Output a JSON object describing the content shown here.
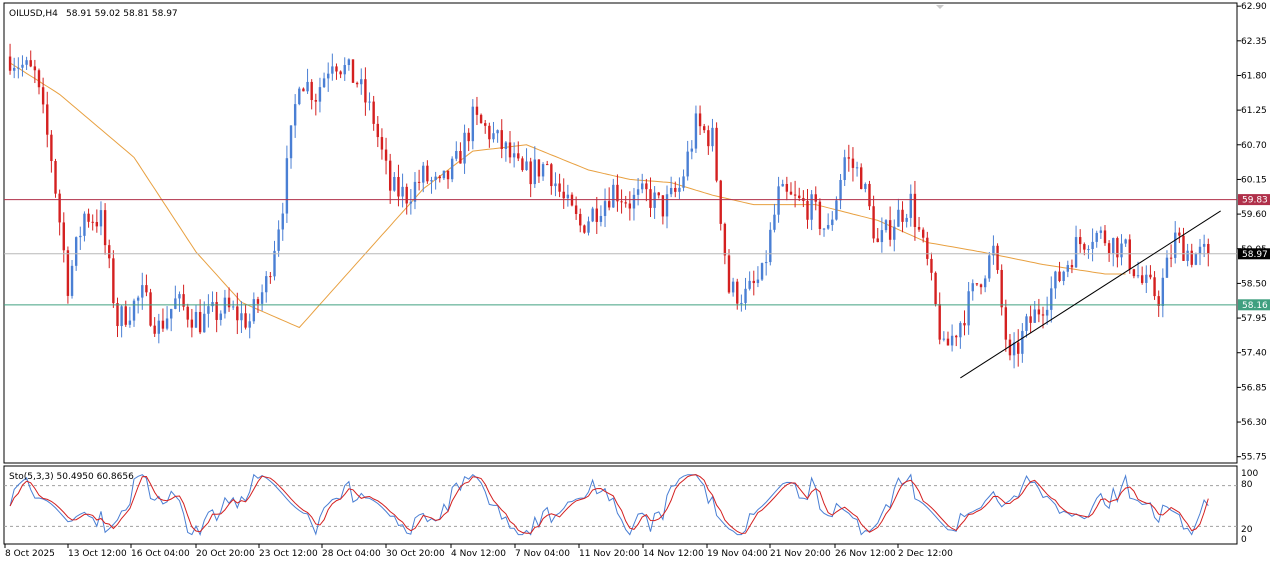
{
  "header": {
    "symbol": "OILUSD,H4",
    "ohlc": "58.91 59.02 58.81 58.97"
  },
  "oscillator": {
    "label": "Sto(5,3,3) 50.4950 60.8656",
    "levels": [
      "100",
      "80",
      "20",
      "0"
    ]
  },
  "price_labels": {
    "resistance": "59.83",
    "current": "58.97",
    "support": "58.16"
  },
  "colors": {
    "bull": "#4a7fd4",
    "bear": "#d42020",
    "ma": "#e8a040",
    "resistance": "#b0304a",
    "support": "#40a080",
    "current": "#000000",
    "stoch_main": "#4a7fd4",
    "stoch_signal": "#d42020"
  },
  "chart_data": {
    "type": "candlestick",
    "symbol": "OILUSD",
    "timeframe": "H4",
    "y_ticks": [
      "62.90",
      "62.35",
      "61.80",
      "61.25",
      "60.70",
      "60.15",
      "59.60",
      "59.05",
      "58.50",
      "57.95",
      "57.40",
      "56.85",
      "56.30",
      "55.75"
    ],
    "ylim": [
      55.65,
      62.95
    ],
    "x_ticks": [
      "8 Oct 2025",
      "13 Oct 12:00",
      "16 Oct 04:00",
      "20 Oct 20:00",
      "23 Oct 12:00",
      "28 Oct 04:00",
      "30 Oct 20:00",
      "4 Nov 12:00",
      "7 Nov 04:00",
      "11 Nov 20:00",
      "14 Nov 12:00",
      "19 Nov 04:00",
      "21 Nov 20:00",
      "26 Nov 12:00",
      "2 Dec 12:00"
    ],
    "horizontal_levels": [
      {
        "value": 59.83,
        "role": "resistance"
      },
      {
        "value": 58.97,
        "role": "current"
      },
      {
        "value": 58.16,
        "role": "support"
      }
    ],
    "trendline": {
      "from": {
        "index": 230,
        "value": 57.0
      },
      "to": {
        "index": 293,
        "value": 59.65
      }
    },
    "moving_average_anchors": [
      [
        0,
        62.0
      ],
      [
        12,
        61.5
      ],
      [
        30,
        60.5
      ],
      [
        45,
        59.0
      ],
      [
        56,
        58.2
      ],
      [
        70,
        57.8
      ],
      [
        85,
        58.9
      ],
      [
        100,
        60.0
      ],
      [
        112,
        60.6
      ],
      [
        125,
        60.7
      ],
      [
        140,
        60.3
      ],
      [
        150,
        60.15
      ],
      [
        160,
        60.1
      ],
      [
        170,
        59.9
      ],
      [
        180,
        59.75
      ],
      [
        195,
        59.75
      ],
      [
        210,
        59.5
      ],
      [
        222,
        59.15
      ],
      [
        235,
        59.0
      ],
      [
        250,
        58.8
      ],
      [
        265,
        58.65
      ]
    ],
    "price_anchors": [
      [
        0,
        62.1
      ],
      [
        6,
        61.8
      ],
      [
        10,
        60.5
      ],
      [
        14,
        58.5
      ],
      [
        18,
        59.6
      ],
      [
        22,
        59.5
      ],
      [
        26,
        57.9
      ],
      [
        32,
        58.3
      ],
      [
        36,
        57.8
      ],
      [
        40,
        58.2
      ],
      [
        46,
        57.9
      ],
      [
        52,
        58.1
      ],
      [
        58,
        57.9
      ],
      [
        62,
        58.5
      ],
      [
        66,
        59.8
      ],
      [
        70,
        61.8
      ],
      [
        74,
        61.5
      ],
      [
        78,
        62.1
      ],
      [
        84,
        61.7
      ],
      [
        88,
        61.1
      ],
      [
        92,
        60.0
      ],
      [
        96,
        59.9
      ],
      [
        100,
        60.2
      ],
      [
        104,
        60.0
      ],
      [
        108,
        60.4
      ],
      [
        112,
        61.1
      ],
      [
        116,
        60.9
      ],
      [
        120,
        60.6
      ],
      [
        124,
        60.2
      ],
      [
        130,
        60.4
      ],
      [
        134,
        59.8
      ],
      [
        138,
        59.4
      ],
      [
        142,
        59.7
      ],
      [
        146,
        60.0
      ],
      [
        150,
        59.8
      ],
      [
        154,
        59.9
      ],
      [
        158,
        59.7
      ],
      [
        162,
        60.0
      ],
      [
        166,
        61.0
      ],
      [
        170,
        60.8
      ],
      [
        174,
        58.4
      ],
      [
        178,
        58.3
      ],
      [
        182,
        58.6
      ],
      [
        186,
        59.9
      ],
      [
        190,
        59.8
      ],
      [
        194,
        59.7
      ],
      [
        198,
        59.3
      ],
      [
        202,
        60.5
      ],
      [
        206,
        60.2
      ],
      [
        210,
        59.1
      ],
      [
        214,
        59.5
      ],
      [
        218,
        59.8
      ],
      [
        222,
        58.8
      ],
      [
        226,
        57.4
      ],
      [
        230,
        57.9
      ],
      [
        234,
        58.5
      ],
      [
        238,
        59.0
      ],
      [
        242,
        57.2
      ],
      [
        246,
        57.8
      ],
      [
        250,
        58.2
      ],
      [
        254,
        58.6
      ],
      [
        258,
        59.1
      ],
      [
        262,
        59.3
      ],
      [
        266,
        59.2
      ],
      [
        270,
        59.0
      ],
      [
        274,
        58.5
      ],
      [
        278,
        58.3
      ],
      [
        282,
        59.2
      ],
      [
        286,
        58.95
      ],
      [
        290,
        58.97
      ]
    ],
    "stochastic": {
      "main": "Sto(5,3,3)",
      "main_value": 50.495,
      "signal_value": 60.8656,
      "levels": [
        80,
        20
      ]
    }
  }
}
